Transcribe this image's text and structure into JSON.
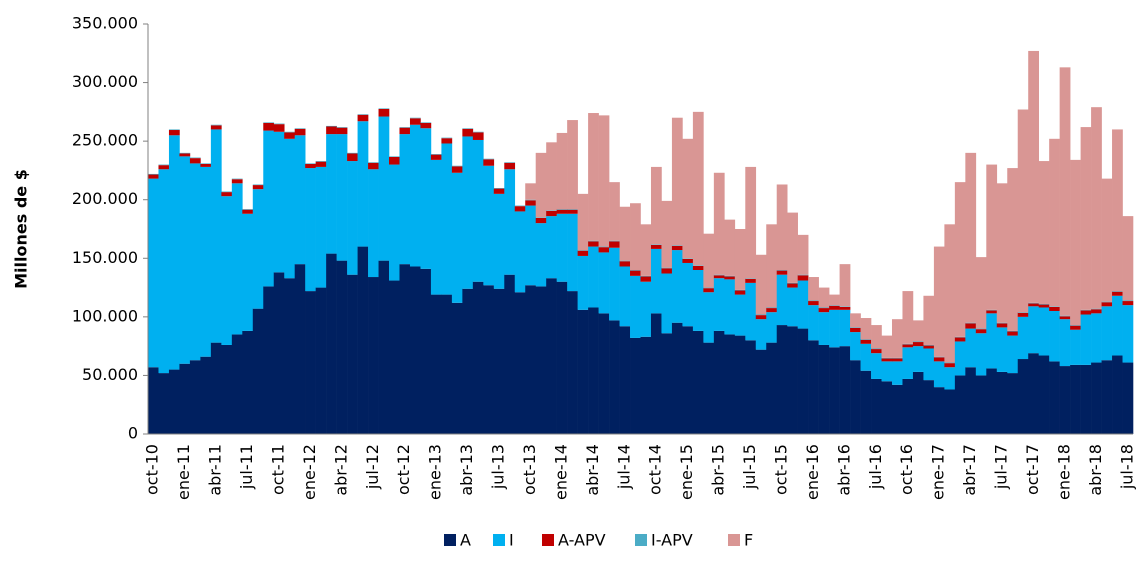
{
  "chart_data": {
    "type": "stacked-bar",
    "y_label": "Millones de $",
    "categories": [
      "oct-10",
      null,
      null,
      "ene-11",
      null,
      null,
      "abr-11",
      null,
      null,
      "jul-11",
      null,
      null,
      "oct-11",
      null,
      null,
      "ene-12",
      null,
      null,
      "abr-12",
      null,
      null,
      "jul-12",
      null,
      null,
      "oct-12",
      null,
      null,
      "ene-13",
      null,
      null,
      "abr-13",
      null,
      null,
      "jul-13",
      null,
      null,
      "oct-13",
      null,
      null,
      "ene-14",
      null,
      null,
      "abr-14",
      null,
      null,
      "jul-14",
      null,
      null,
      "oct-14",
      null,
      null,
      "ene-15",
      null,
      null,
      "abr-15",
      null,
      null,
      "jul-15",
      null,
      null,
      "oct-15",
      null,
      null,
      "ene-16",
      null,
      null,
      "abr-16",
      null,
      null,
      "jul-16",
      null,
      null,
      "oct-16",
      null,
      null,
      "ene-17",
      null,
      null,
      "abr-17",
      null,
      null,
      "jul-17",
      null,
      null,
      "oct-17",
      null,
      null,
      "ene-18",
      null,
      null,
      "abr-18",
      null,
      null,
      "jul-18"
    ],
    "series": [
      {
        "name": "A",
        "color": "#002060",
        "values": [
          57000,
          52000,
          55000,
          60000,
          63000,
          66000,
          78000,
          76000,
          85000,
          88000,
          107000,
          126000,
          138000,
          133000,
          145000,
          122000,
          125000,
          154000,
          148000,
          136000,
          160000,
          134000,
          148000,
          131000,
          145000,
          143000,
          141000,
          119000,
          119000,
          112000,
          124000,
          130000,
          127000,
          124000,
          136000,
          121000,
          127000,
          126000,
          133000,
          130000,
          122000,
          106000,
          108000,
          103000,
          97000,
          92000,
          82000,
          83000,
          103000,
          86000,
          95000,
          92000,
          88000,
          78000,
          88000,
          85000,
          84000,
          80000,
          72000,
          78000,
          93000,
          92000,
          90000,
          80000,
          76000,
          74000,
          75000,
          63000,
          54000,
          47000,
          45000,
          42000,
          47000,
          53000,
          46000,
          40000,
          38000,
          50000,
          57000,
          50000,
          56000,
          53000,
          52000,
          64000,
          69000,
          67000,
          62000,
          58000,
          59000,
          59000,
          61000,
          63000,
          67000,
          61000
        ]
      },
      {
        "name": "I",
        "color": "#00b0f0",
        "values": [
          161000,
          174000,
          200000,
          177000,
          168000,
          162000,
          182000,
          127000,
          129000,
          100000,
          102000,
          133000,
          120000,
          119000,
          110000,
          105000,
          103000,
          102000,
          108000,
          97000,
          107000,
          92000,
          123000,
          99000,
          111000,
          121000,
          120000,
          115000,
          129000,
          111000,
          130000,
          121000,
          102000,
          81000,
          90000,
          69000,
          68000,
          54000,
          53000,
          58000,
          66000,
          46000,
          52000,
          52000,
          62000,
          51000,
          53000,
          47000,
          55000,
          51000,
          62000,
          54000,
          52000,
          43000,
          45000,
          47000,
          35000,
          49000,
          26000,
          26000,
          43000,
          33000,
          41000,
          30000,
          28000,
          32000,
          31000,
          24000,
          23000,
          22000,
          17000,
          20000,
          27000,
          22000,
          27000,
          22000,
          19000,
          29000,
          33000,
          36000,
          47000,
          38000,
          32000,
          36000,
          40000,
          41000,
          43000,
          40000,
          30000,
          43000,
          42000,
          46000,
          51000,
          49000
        ]
      },
      {
        "name": "A-APV",
        "color": "#c00000",
        "values": [
          3500,
          3500,
          4500,
          2500,
          4500,
          2500,
          3500,
          3500,
          3500,
          3500,
          3500,
          6500,
          6500,
          5500,
          5500,
          3500,
          4500,
          6500,
          5500,
          6500,
          5500,
          5500,
          6500,
          6500,
          5500,
          5500,
          4500,
          4500,
          4500,
          5500,
          6500,
          6500,
          5500,
          4500,
          5500,
          4500,
          4500,
          4500,
          4500,
          3500,
          3500,
          4500,
          4500,
          4500,
          5500,
          4500,
          4500,
          4500,
          3500,
          4500,
          3500,
          3500,
          3500,
          3500,
          2500,
          2500,
          3500,
          3500,
          3500,
          3500,
          3500,
          3500,
          4500,
          3500,
          3500,
          3500,
          2500,
          3500,
          3500,
          3500,
          2500,
          2500,
          2500,
          3500,
          2500,
          3500,
          3500,
          3500,
          4500,
          3500,
          2500,
          3500,
          3500,
          3500,
          2500,
          2500,
          3500,
          2500,
          3500,
          3500,
          3500,
          3500,
          3500,
          3500
        ]
      },
      {
        "name": "I-APV",
        "color": "#4bacc6",
        "values": [
          500,
          500,
          500,
          500,
          500,
          500,
          500,
          500,
          500,
          500,
          500,
          500,
          500,
          500,
          500,
          500,
          500,
          500,
          500,
          500,
          500,
          500,
          500,
          500,
          500,
          500,
          500,
          500,
          500,
          500,
          500,
          500,
          500,
          500,
          500,
          500,
          500,
          500,
          500,
          500,
          500,
          500,
          500,
          500,
          500,
          500,
          500,
          500,
          500,
          500,
          500,
          500,
          500,
          500,
          500,
          500,
          500,
          500,
          500,
          500,
          500,
          500,
          500,
          500,
          500,
          500,
          500,
          500,
          500,
          500,
          500,
          500,
          500,
          500,
          500,
          500,
          500,
          500,
          500,
          500,
          500,
          500,
          500,
          500,
          500,
          500,
          500,
          500,
          500,
          500,
          500,
          500,
          500,
          500
        ]
      },
      {
        "name": "F",
        "color": "#d99694",
        "values": [
          0,
          0,
          0,
          0,
          0,
          0,
          0,
          0,
          0,
          0,
          0,
          0,
          0,
          0,
          0,
          0,
          0,
          0,
          0,
          0,
          0,
          0,
          0,
          0,
          0,
          0,
          0,
          0,
          0,
          0,
          0,
          0,
          0,
          0,
          0,
          0,
          14000,
          55000,
          58000,
          65000,
          76000,
          48000,
          109000,
          112000,
          50000,
          46000,
          57000,
          44000,
          66000,
          57000,
          109000,
          102000,
          131000,
          46000,
          87000,
          48000,
          52000,
          95000,
          51000,
          71000,
          73000,
          60000,
          34000,
          20000,
          17000,
          9000,
          36000,
          12000,
          18000,
          20000,
          19000,
          33000,
          45000,
          18000,
          42000,
          94000,
          118000,
          132000,
          145000,
          61000,
          124000,
          119000,
          139000,
          173000,
          215000,
          122000,
          143000,
          212000,
          141000,
          156000,
          172000,
          105000,
          138000,
          72000
        ]
      }
    ],
    "ylim": [
      0,
      350000
    ],
    "yticks": [
      0,
      {
        "value": 50000,
        "label": "50.000"
      },
      {
        "value": 100000,
        "label": "100.000"
      },
      {
        "value": 150000,
        "label": "150.000"
      },
      {
        "value": 200000,
        "label": "200.000"
      },
      {
        "value": 250000,
        "label": "250.000"
      },
      {
        "value": 300000,
        "label": "300.000"
      },
      {
        "value": 350000,
        "label": "350.000"
      }
    ],
    "grid": false,
    "legend": "bottom"
  }
}
